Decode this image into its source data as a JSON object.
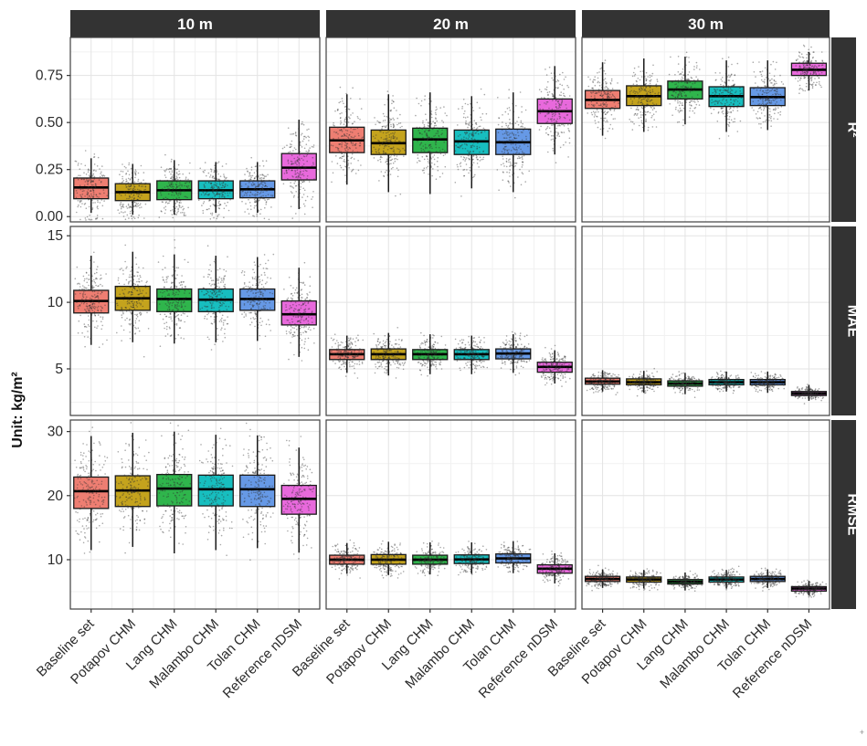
{
  "figure": {
    "unit_label": "Unit: kg/m²",
    "corner_mark": "+"
  },
  "style": {
    "strip_bg": "#333333",
    "strip_text_color": "#ffffff",
    "panel_bg": "#ffffff",
    "panel_border": "#404040",
    "grid_major": "#e3e3e3",
    "grid_minor": "#f1f1f1",
    "axis_text_color": "#2b2b2b",
    "tick_color": "#333333",
    "point_color": "#303030",
    "box_stroke": "#1a1a1a",
    "median_color": "#000000"
  },
  "chart_data": {
    "type": "boxplot",
    "title": "",
    "facet_columns": [
      "10 m",
      "20 m",
      "30 m"
    ],
    "facet_rows": [
      "R²",
      "MAE",
      "RMSE"
    ],
    "categories": [
      "Baseline set",
      "Potapov CHM",
      "Lang CHM",
      "Malambo CHM",
      "Tolan CHM",
      "Reference nDSM"
    ],
    "series_colors": [
      "#EE7E72",
      "#C4A31D",
      "#2FB54C",
      "#17BEBF",
      "#6699E6",
      "#E869DC"
    ],
    "legend": "none",
    "grid": true,
    "x_label_angle": 45,
    "y_axes": [
      {
        "row": "R²",
        "tick_labels": [
          "0.75",
          "0.50",
          "0.25",
          "0.00"
        ],
        "tick_values": [
          0.75,
          0.5,
          0.25,
          0.0
        ],
        "minor_values": [
          0.875,
          0.625,
          0.375,
          0.125
        ],
        "ylim": [
          -0.028,
          0.952
        ]
      },
      {
        "row": "MAE",
        "tick_labels": [
          "15",
          "10",
          "5"
        ],
        "tick_values": [
          15,
          10,
          5
        ],
        "minor_values": [
          12.5,
          7.5,
          2.5
        ],
        "ylim": [
          1.5,
          15.7
        ]
      },
      {
        "row": "RMSE",
        "tick_labels": [
          "30",
          "20",
          "10"
        ],
        "tick_values": [
          30,
          20,
          10
        ],
        "minor_values": [
          25,
          15,
          5
        ],
        "ylim": [
          2.3,
          31.8
        ]
      }
    ],
    "stats_format": "[whisker_low, q1, median, q3, whisker_high]",
    "panels": [
      {
        "row": "R²",
        "col": "10 m",
        "stats": [
          [
            0.02,
            0.095,
            0.155,
            0.205,
            0.31
          ],
          [
            0.01,
            0.085,
            0.13,
            0.175,
            0.28
          ],
          [
            0.01,
            0.09,
            0.14,
            0.19,
            0.3
          ],
          [
            0.02,
            0.095,
            0.14,
            0.19,
            0.29
          ],
          [
            0.02,
            0.1,
            0.145,
            0.19,
            0.29
          ],
          [
            0.04,
            0.195,
            0.26,
            0.335,
            0.515
          ]
        ]
      },
      {
        "row": "R²",
        "col": "20 m",
        "stats": [
          [
            0.17,
            0.34,
            0.405,
            0.475,
            0.65
          ],
          [
            0.13,
            0.33,
            0.39,
            0.46,
            0.65
          ],
          [
            0.12,
            0.34,
            0.41,
            0.47,
            0.66
          ],
          [
            0.15,
            0.33,
            0.4,
            0.46,
            0.64
          ],
          [
            0.13,
            0.33,
            0.395,
            0.465,
            0.66
          ],
          [
            0.33,
            0.495,
            0.56,
            0.625,
            0.8
          ]
        ]
      },
      {
        "row": "R²",
        "col": "30 m",
        "stats": [
          [
            0.43,
            0.575,
            0.62,
            0.67,
            0.82
          ],
          [
            0.45,
            0.59,
            0.64,
            0.695,
            0.84
          ],
          [
            0.49,
            0.625,
            0.675,
            0.72,
            0.85
          ],
          [
            0.45,
            0.585,
            0.64,
            0.69,
            0.83
          ],
          [
            0.46,
            0.59,
            0.635,
            0.685,
            0.83
          ],
          [
            0.67,
            0.75,
            0.78,
            0.815,
            0.875
          ]
        ]
      },
      {
        "row": "MAE",
        "col": "10 m",
        "stats": [
          [
            6.8,
            9.2,
            10.1,
            10.9,
            13.5
          ],
          [
            7.0,
            9.4,
            10.3,
            11.2,
            13.8
          ],
          [
            6.9,
            9.3,
            10.25,
            11.0,
            13.6
          ],
          [
            7.0,
            9.3,
            10.2,
            11.0,
            13.5
          ],
          [
            7.1,
            9.4,
            10.25,
            11.0,
            13.4
          ],
          [
            5.9,
            8.3,
            9.1,
            10.1,
            12.6
          ]
        ]
      },
      {
        "row": "MAE",
        "col": "20 m",
        "stats": [
          [
            4.7,
            5.7,
            6.1,
            6.45,
            7.5
          ],
          [
            4.5,
            5.7,
            6.1,
            6.5,
            7.7
          ],
          [
            4.6,
            5.7,
            6.1,
            6.45,
            7.6
          ],
          [
            4.6,
            5.7,
            6.1,
            6.45,
            7.5
          ],
          [
            4.7,
            5.75,
            6.15,
            6.5,
            7.6
          ],
          [
            3.9,
            4.75,
            5.15,
            5.5,
            6.4
          ]
        ]
      },
      {
        "row": "MAE",
        "col": "30 m",
        "stats": [
          [
            3.3,
            3.85,
            4.05,
            4.3,
            4.9
          ],
          [
            3.2,
            3.8,
            4.0,
            4.25,
            4.85
          ],
          [
            3.1,
            3.7,
            3.9,
            4.1,
            4.7
          ],
          [
            3.3,
            3.8,
            4.0,
            4.2,
            4.8
          ],
          [
            3.2,
            3.8,
            4.0,
            4.2,
            4.8
          ],
          [
            2.6,
            3.0,
            3.15,
            3.3,
            3.8
          ]
        ]
      },
      {
        "row": "RMSE",
        "col": "10 m",
        "stats": [
          [
            11.5,
            18.0,
            20.7,
            22.9,
            29.3
          ],
          [
            12.0,
            18.3,
            20.8,
            23.1,
            29.8
          ],
          [
            11.0,
            18.4,
            21.1,
            23.3,
            30.0
          ],
          [
            11.5,
            18.4,
            21.0,
            23.2,
            29.5
          ],
          [
            11.8,
            18.3,
            21.0,
            23.2,
            29.4
          ],
          [
            11.1,
            17.1,
            19.5,
            21.6,
            27.5
          ]
        ]
      },
      {
        "row": "RMSE",
        "col": "20 m",
        "stats": [
          [
            7.8,
            9.3,
            10.0,
            10.7,
            12.6
          ],
          [
            7.6,
            9.3,
            10.0,
            10.8,
            12.8
          ],
          [
            7.7,
            9.3,
            10.0,
            10.7,
            12.7
          ],
          [
            7.8,
            9.4,
            10.05,
            10.75,
            12.7
          ],
          [
            7.9,
            9.5,
            10.2,
            10.9,
            12.9
          ],
          [
            6.3,
            7.9,
            8.6,
            9.2,
            11.0
          ]
        ]
      },
      {
        "row": "RMSE",
        "col": "30 m",
        "stats": [
          [
            5.6,
            6.6,
            7.0,
            7.4,
            8.5
          ],
          [
            5.5,
            6.5,
            6.9,
            7.3,
            8.4
          ],
          [
            5.2,
            6.2,
            6.55,
            6.9,
            8.0
          ],
          [
            5.5,
            6.5,
            6.9,
            7.3,
            8.4
          ],
          [
            5.6,
            6.6,
            7.0,
            7.4,
            8.5
          ],
          [
            4.4,
            5.1,
            5.5,
            5.8,
            6.7
          ]
        ]
      }
    ]
  }
}
